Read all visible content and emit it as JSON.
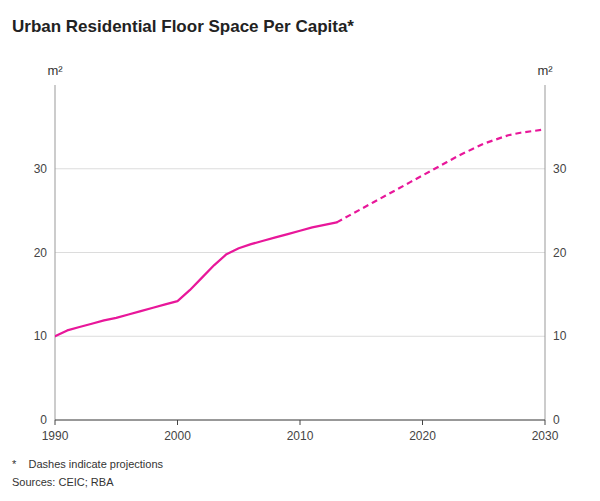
{
  "chart_data": {
    "type": "line",
    "title": "Urban Residential Floor Space Per Capita*",
    "y_label": "m²",
    "y2_label": "m²",
    "footnotes": [
      "*    Dashes indicate projections",
      "Sources: CEIC; RBA"
    ],
    "xlim": [
      1990,
      2030
    ],
    "xticks": [
      1990,
      2000,
      2010,
      2020,
      2030
    ],
    "ylim": [
      0,
      40
    ],
    "yticks": [
      0,
      10,
      20,
      30
    ],
    "y2lim": [
      0,
      40
    ],
    "y2ticks": [
      0,
      10,
      20,
      30
    ],
    "grid": true,
    "series": [
      {
        "x": [
          1990,
          1991,
          1992,
          1993,
          1994,
          1995,
          1996,
          1997,
          1998,
          1999,
          2000,
          2001,
          2002,
          2003,
          2004,
          2005,
          2006,
          2007,
          2008,
          2009,
          2010,
          2011,
          2012,
          2013
        ],
        "values": [
          10.0,
          10.7,
          11.1,
          11.5,
          11.9,
          12.2,
          12.6,
          13.0,
          13.4,
          13.8,
          14.2,
          15.5,
          17.0,
          18.5,
          19.8,
          20.5,
          21.0,
          21.4,
          21.8,
          22.2,
          22.6,
          23.0,
          23.3,
          23.6
        ],
        "color": "#e8179a",
        "line_style": "solid"
      },
      {
        "x": [
          2013,
          2014,
          2015,
          2016,
          2017,
          2018,
          2019,
          2020,
          2021,
          2022,
          2023,
          2024,
          2025,
          2026,
          2027,
          2028,
          2029,
          2030
        ],
        "values": [
          23.6,
          24.4,
          25.2,
          26.0,
          26.8,
          27.6,
          28.4,
          29.2,
          30.0,
          30.8,
          31.6,
          32.3,
          33.0,
          33.5,
          34.0,
          34.3,
          34.5,
          34.7
        ],
        "color": "#e8179a",
        "line_style": "dashed"
      }
    ]
  }
}
